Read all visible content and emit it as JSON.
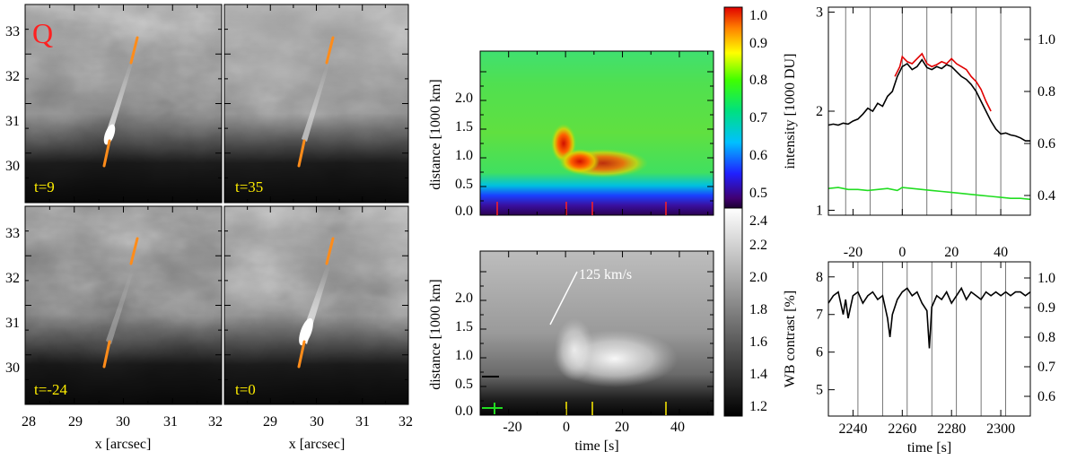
{
  "figure": {
    "panel_letter": "Q",
    "colors": {
      "orange": "#ff8c1a",
      "red": "#e00000",
      "yellow": "#ffee00",
      "green": "#22dd22"
    },
    "image_panels": [
      {
        "time_label": "t=9"
      },
      {
        "time_label": "t=35"
      },
      {
        "time_label": "t=-24"
      },
      {
        "time_label": "t=0"
      }
    ],
    "image_axes": {
      "x_ticks": [
        "28",
        "29",
        "30",
        "31",
        "32"
      ],
      "x_ticks_right": [
        "29",
        "30",
        "31",
        "32"
      ],
      "y_ticks": [
        "30",
        "31",
        "32",
        "33"
      ],
      "xlabel": "x [arcsec]"
    },
    "spacetime_top": {
      "ylabel": "distance [1000 km]",
      "y_ticks": [
        "0.0",
        "0.5",
        "1.0",
        "1.5",
        "2.0"
      ],
      "colorbar_ticks": [
        "0.5",
        "0.6",
        "0.7",
        "0.8",
        "0.9",
        "1.0"
      ]
    },
    "spacetime_bottom": {
      "ylabel": "distance [1000 km]",
      "y_ticks": [
        "0.0",
        "0.5",
        "1.0",
        "1.5",
        "2.0"
      ],
      "x_ticks": [
        "-20",
        "0",
        "20",
        "40"
      ],
      "xlabel": "time [s]",
      "velocity_label": "125 km/s",
      "colorbar_ticks": [
        "1.2",
        "1.4",
        "1.6",
        "1.8",
        "2.0",
        "2.2",
        "2.4"
      ]
    }
  },
  "chart_data": [
    {
      "type": "line",
      "title": "",
      "xlabel": "time [s]",
      "ylabel": "intensity [1000 DU]",
      "x_ticks": [
        "-20",
        "0",
        "20",
        "40"
      ],
      "y_ticks": [
        "1",
        "2",
        "3"
      ],
      "right_ticks": [
        "0.4",
        "0.6",
        "0.8",
        "1.0"
      ],
      "xlim": [
        -30,
        52
      ],
      "ylim": [
        0.95,
        3.05
      ],
      "vlines": [
        -23,
        -13,
        0,
        10,
        20,
        30,
        40
      ],
      "series": [
        {
          "name": "intensity",
          "color": "#000000",
          "x": [
            -30,
            -28,
            -26,
            -24,
            -22,
            -20,
            -18,
            -16,
            -14,
            -12,
            -10,
            -8,
            -6,
            -4,
            -2,
            0,
            2,
            4,
            6,
            8,
            10,
            12,
            14,
            16,
            18,
            20,
            22,
            24,
            26,
            28,
            30,
            32,
            34,
            36,
            38,
            40,
            42,
            44,
            46,
            48,
            50,
            52
          ],
          "y": [
            1.86,
            1.87,
            1.86,
            1.88,
            1.87,
            1.9,
            1.92,
            1.97,
            2.03,
            2.0,
            2.08,
            2.05,
            2.15,
            2.2,
            2.35,
            2.45,
            2.48,
            2.42,
            2.45,
            2.52,
            2.44,
            2.42,
            2.45,
            2.43,
            2.47,
            2.45,
            2.4,
            2.35,
            2.32,
            2.27,
            2.2,
            2.1,
            2.0,
            1.9,
            1.82,
            1.77,
            1.78,
            1.76,
            1.75,
            1.73,
            1.7,
            1.7
          ]
        },
        {
          "name": "intensity-fit",
          "color": "#e00000",
          "x": [
            -3,
            -1,
            0,
            2,
            4,
            6,
            8,
            10,
            12,
            14,
            16,
            18,
            20,
            22,
            24,
            26,
            28,
            30,
            32,
            34,
            36
          ],
          "y": [
            2.35,
            2.45,
            2.55,
            2.5,
            2.48,
            2.53,
            2.58,
            2.48,
            2.45,
            2.47,
            2.5,
            2.48,
            2.53,
            2.48,
            2.45,
            2.42,
            2.35,
            2.3,
            2.22,
            2.1,
            2.0
          ]
        },
        {
          "name": "reference",
          "color": "#22dd22",
          "x": [
            -30,
            -26,
            -22,
            -18,
            -14,
            -10,
            -6,
            -2,
            0,
            4,
            8,
            12,
            16,
            20,
            24,
            28,
            32,
            36,
            40,
            44,
            48,
            52
          ],
          "y": [
            1.22,
            1.23,
            1.21,
            1.21,
            1.2,
            1.21,
            1.22,
            1.2,
            1.23,
            1.22,
            1.21,
            1.2,
            1.19,
            1.18,
            1.17,
            1.16,
            1.15,
            1.14,
            1.13,
            1.12,
            1.12,
            1.11
          ]
        }
      ]
    },
    {
      "type": "line",
      "title": "",
      "xlabel": "time [s]",
      "ylabel": "WB contrast [%]",
      "x_ticks": [
        "2240",
        "2260",
        "2280",
        "2300"
      ],
      "y_ticks": [
        "5",
        "6",
        "7",
        "8"
      ],
      "right_ticks": [
        "0.6",
        "0.7",
        "0.8",
        "0.9",
        "1.0"
      ],
      "xlim": [
        2230,
        2312
      ],
      "ylim": [
        4.3,
        8.4
      ],
      "vlines": [
        2242,
        2252,
        2262,
        2272,
        2282,
        2292,
        2302
      ],
      "series": [
        {
          "name": "contrast",
          "color": "#000000",
          "x": [
            2230,
            2232,
            2234,
            2236,
            2237,
            2238,
            2240,
            2242,
            2244,
            2246,
            2248,
            2250,
            2252,
            2254,
            2255,
            2256,
            2258,
            2260,
            2262,
            2264,
            2266,
            2268,
            2270,
            2271,
            2272,
            2274,
            2276,
            2278,
            2280,
            2282,
            2284,
            2286,
            2288,
            2290,
            2292,
            2294,
            2296,
            2298,
            2300,
            2302,
            2304,
            2306,
            2308,
            2310,
            2312
          ],
          "y": [
            7.3,
            7.5,
            7.6,
            7.0,
            7.4,
            6.9,
            7.5,
            7.6,
            7.3,
            7.5,
            7.6,
            7.4,
            7.5,
            6.9,
            6.4,
            7.0,
            7.4,
            7.6,
            7.7,
            7.5,
            7.6,
            7.3,
            7.1,
            6.1,
            7.2,
            7.5,
            7.4,
            7.6,
            7.3,
            7.5,
            7.7,
            7.4,
            7.6,
            7.5,
            7.4,
            7.6,
            7.5,
            7.6,
            7.5,
            7.6,
            7.5,
            7.6,
            7.6,
            7.5,
            7.6
          ]
        }
      ]
    }
  ]
}
